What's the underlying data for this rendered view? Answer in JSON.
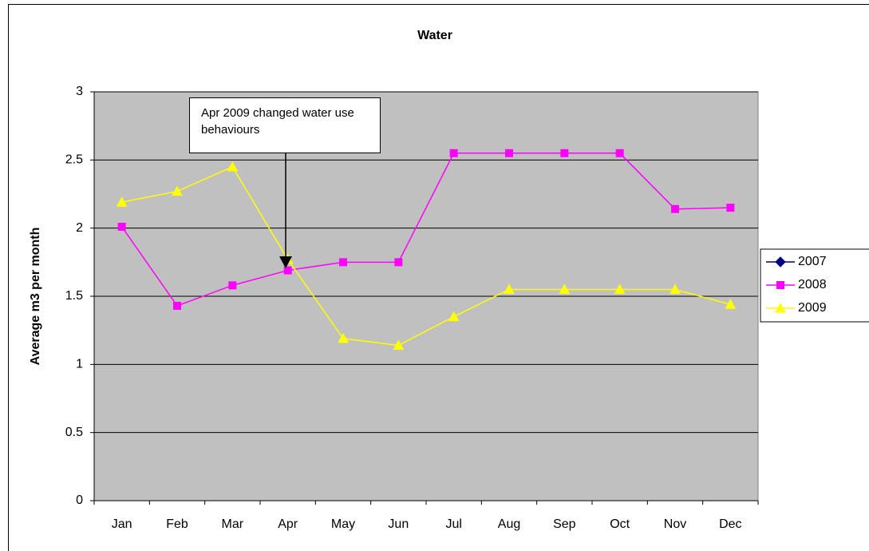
{
  "chart_data": {
    "type": "line",
    "title": "Water",
    "y_label": "Average m3 per month",
    "annotation": "Apr 2009 changed water use behaviours",
    "categories": [
      "Jan",
      "Feb",
      "Mar",
      "Apr",
      "May",
      "Jun",
      "Jul",
      "Aug",
      "Sep",
      "Oct",
      "Nov",
      "Dec"
    ],
    "series": [
      {
        "name": "2007",
        "color": "#000080",
        "marker": "diamond",
        "values": [
          null,
          null,
          null,
          null,
          null,
          null,
          null,
          null,
          null,
          null,
          null,
          null
        ]
      },
      {
        "name": "2008",
        "color": "#ff00ff",
        "marker": "square",
        "values": [
          2.01,
          1.43,
          1.58,
          1.69,
          1.75,
          1.75,
          2.55,
          2.55,
          2.55,
          2.55,
          2.14,
          2.15
        ]
      },
      {
        "name": "2009",
        "color": "#ffff00",
        "marker": "triangle",
        "values": [
          2.19,
          2.27,
          2.45,
          1.77,
          1.19,
          1.14,
          1.35,
          1.55,
          1.55,
          1.55,
          1.55,
          1.44
        ]
      }
    ],
    "ylim": [
      0,
      3
    ],
    "yticks": [
      0,
      0.5,
      1,
      1.5,
      2,
      2.5,
      3
    ],
    "grid": true,
    "legend": "right"
  }
}
